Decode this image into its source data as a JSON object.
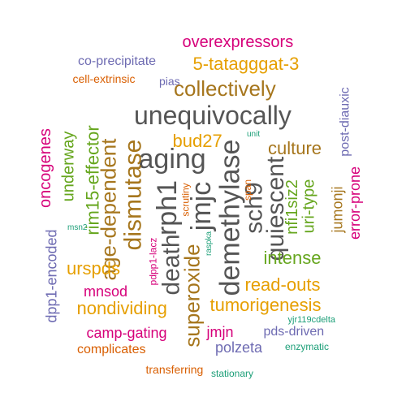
{
  "colors": {
    "magenta": "#d6007a",
    "purple": "#6e6bb2",
    "orange": "#e69f00",
    "rust": "#d95f02",
    "gray": "#555555",
    "olive": "#a6761d",
    "green": "#66a61e",
    "teal": "#1b9e77"
  },
  "words": [
    {
      "text": "overexpressors",
      "color": "magenta",
      "size": 20
    },
    {
      "text": "co-precipitate",
      "color": "purple",
      "size": 16
    },
    {
      "text": "5-tatagggat-3",
      "color": "orange",
      "size": 22
    },
    {
      "text": "cell-extrinsic",
      "color": "rust",
      "size": 14
    },
    {
      "text": "pias",
      "color": "purple",
      "size": 14
    },
    {
      "text": "collectively",
      "color": "olive",
      "size": 26
    },
    {
      "text": "unequivocally",
      "color": "gray",
      "size": 32
    },
    {
      "text": "bud27",
      "color": "orange",
      "size": 22
    },
    {
      "text": "unit",
      "color": "teal",
      "size": 10
    },
    {
      "text": "culture",
      "color": "olive",
      "size": 22
    },
    {
      "text": "aging",
      "color": "gray",
      "size": 34
    },
    {
      "text": "post-diauxic",
      "color": "purple",
      "size": 16
    },
    {
      "text": "oncogenes",
      "color": "magenta",
      "size": 20
    },
    {
      "text": "underway",
      "color": "green",
      "size": 20
    },
    {
      "text": "rim15-effector",
      "color": "green",
      "size": 22
    },
    {
      "text": "age-dependent",
      "color": "olive",
      "size": 26
    },
    {
      "text": "dismutase",
      "color": "olive",
      "size": 30
    },
    {
      "text": "rph1",
      "color": "gray",
      "size": 34
    },
    {
      "text": "jmjc",
      "color": "gray",
      "size": 34
    },
    {
      "text": "demethylase",
      "color": "gray",
      "size": 34
    },
    {
      "text": "scrutiny",
      "color": "rust",
      "size": 12
    },
    {
      "text": "sch9",
      "color": "gray",
      "size": 30
    },
    {
      "text": "quiescent",
      "color": "gray",
      "size": 30
    },
    {
      "text": "span",
      "color": "rust",
      "size": 12
    },
    {
      "text": "nfi1siz2",
      "color": "green",
      "size": 20
    },
    {
      "text": "uri-type",
      "color": "green",
      "size": 20
    },
    {
      "text": "jumonji",
      "color": "olive",
      "size": 18
    },
    {
      "text": "error-prone",
      "color": "magenta",
      "size": 18
    },
    {
      "text": "dpp1-encoded",
      "color": "purple",
      "size": 18
    },
    {
      "text": "msn2",
      "color": "teal",
      "size": 10
    },
    {
      "text": "urspds",
      "color": "orange",
      "size": 22
    },
    {
      "text": "death",
      "color": "gray",
      "size": 30
    },
    {
      "text": "superoxide",
      "color": "olive",
      "size": 26
    },
    {
      "text": "pdpp1-lacz",
      "color": "magenta",
      "size": 12
    },
    {
      "text": "raspka",
      "color": "teal",
      "size": 10
    },
    {
      "text": "intense",
      "color": "green",
      "size": 22
    },
    {
      "text": "read-outs",
      "color": "orange",
      "size": 22
    },
    {
      "text": "mnsod",
      "color": "magenta",
      "size": 18
    },
    {
      "text": "nondividing",
      "color": "orange",
      "size": 22
    },
    {
      "text": "tumorigenesis",
      "color": "orange",
      "size": 22
    },
    {
      "text": "yjr119cdelta",
      "color": "teal",
      "size": 11
    },
    {
      "text": "camp-gating",
      "color": "magenta",
      "size": 18
    },
    {
      "text": "jmjn",
      "color": "magenta",
      "size": 18
    },
    {
      "text": "pds-driven",
      "color": "purple",
      "size": 16
    },
    {
      "text": "complicates",
      "color": "rust",
      "size": 16
    },
    {
      "text": "polzeta",
      "color": "purple",
      "size": 18
    },
    {
      "text": "enzymatic",
      "color": "teal",
      "size": 12
    },
    {
      "text": "transferring",
      "color": "rust",
      "size": 14
    },
    {
      "text": "stationary",
      "color": "teal",
      "size": 12
    }
  ]
}
